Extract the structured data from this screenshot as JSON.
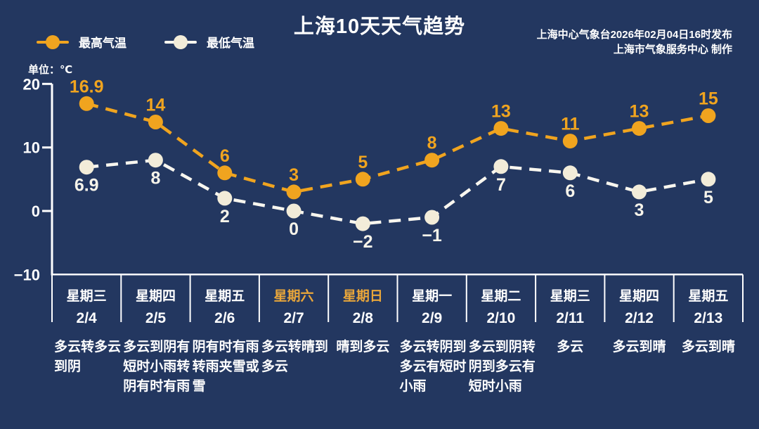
{
  "title": "上海10天天气趋势",
  "source": {
    "line1": "上海中心气象台2026年02月04日16时发布",
    "line2": "上海市气象服务中心  制作"
  },
  "unit_label": "单位：℃",
  "colors": {
    "background": "#233760",
    "text": "#ffffff",
    "weekend_day": "#e9a63a",
    "axis": "#ffffff",
    "divider": "#ffffff"
  },
  "chart_data": {
    "type": "line",
    "title": "上海10天天气趋势",
    "categories": [
      "2/4",
      "2/5",
      "2/6",
      "2/7",
      "2/8",
      "2/9",
      "2/10",
      "2/11",
      "2/12",
      "2/13"
    ],
    "series": [
      {
        "name": "最高气温",
        "values": [
          16.9,
          14,
          6,
          3,
          5,
          8,
          13,
          11,
          13,
          15
        ],
        "line_color": "#f0a41f",
        "marker_color": "#f0a41f",
        "label_color": "#f0a41f"
      },
      {
        "name": "最低气温",
        "values": [
          6.9,
          8,
          2,
          0,
          -2,
          -1,
          7,
          6,
          3,
          5
        ],
        "line_color": "#f8f6ef",
        "marker_color": "#f2ecd9",
        "label_color": "#f7f4ea"
      }
    ],
    "ylabel": "单位：℃",
    "ylim": [
      -10,
      20
    ],
    "yticks": [
      20,
      10,
      0,
      -10
    ],
    "grid": false,
    "line_style": "dashed",
    "legend_position": "top-left"
  },
  "days": [
    {
      "weekday": "星期三",
      "date": "2/4",
      "weather": "多云转多云\n到阴"
    },
    {
      "weekday": "星期四",
      "date": "2/5",
      "weather": "多云到阴有\n短时小雨转\n阴有时有雨"
    },
    {
      "weekday": "星期五",
      "date": "2/6",
      "weather": "阴有时有雨\n转雨夹雪或\n雪"
    },
    {
      "weekday": "星期六",
      "date": "2/7",
      "weather": "多云转晴到\n多云"
    },
    {
      "weekday": "星期日",
      "date": "2/8",
      "weather": "晴到多云"
    },
    {
      "weekday": "星期一",
      "date": "2/9",
      "weather": "多云转阴到\n多云有短时\n小雨"
    },
    {
      "weekday": "星期二",
      "date": "2/10",
      "weather": "多云到阴转\n阴到多云有\n短时小雨"
    },
    {
      "weekday": "星期三",
      "date": "2/11",
      "weather": "多云"
    },
    {
      "weekday": "星期四",
      "date": "2/12",
      "weather": "多云到晴"
    },
    {
      "weekday": "星期五",
      "date": "2/13",
      "weather": "多云到晴"
    }
  ]
}
